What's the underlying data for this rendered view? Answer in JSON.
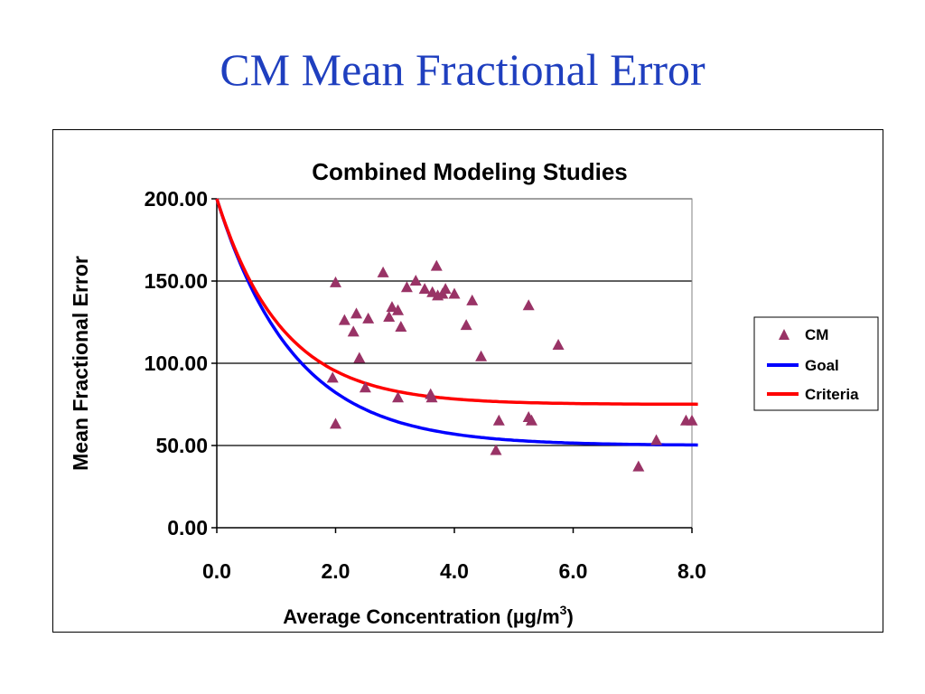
{
  "slide": {
    "title": "CM Mean Fractional Error"
  },
  "chart_data": {
    "type": "scatter",
    "title": "Combined Modeling Studies",
    "xlabel": "Average Concentration (µg/m",
    "xlabel_superscript": "3",
    "xlabel_close": ")",
    "ylabel": "Mean Fractional Error",
    "xlim": [
      0,
      8
    ],
    "ylim": [
      0,
      200
    ],
    "x_ticks": [
      {
        "value": 0,
        "label": "0.0"
      },
      {
        "value": 2,
        "label": "2.0"
      },
      {
        "value": 4,
        "label": "4.0"
      },
      {
        "value": 6,
        "label": "6.0"
      },
      {
        "value": 8,
        "label": "8.0"
      }
    ],
    "y_ticks": [
      {
        "value": 0,
        "label": "0.00"
      },
      {
        "value": 50,
        "label": "50.00"
      },
      {
        "value": 100,
        "label": "100.00"
      },
      {
        "value": 150,
        "label": "150.00"
      },
      {
        "value": 200,
        "label": "200.00"
      }
    ],
    "grid": "horizontal",
    "legend_position": "right",
    "colors": {
      "cm": "#993366",
      "goal": "#0000ff",
      "criteria": "#ff0000"
    },
    "series": [
      {
        "name": "CM",
        "kind": "scatter",
        "marker": "triangle",
        "points": [
          [
            1.95,
            91
          ],
          [
            2.0,
            149
          ],
          [
            2.0,
            63
          ],
          [
            2.15,
            126
          ],
          [
            2.3,
            119
          ],
          [
            2.35,
            130
          ],
          [
            2.4,
            103
          ],
          [
            2.5,
            85
          ],
          [
            2.55,
            127
          ],
          [
            2.8,
            155
          ],
          [
            2.9,
            128
          ],
          [
            2.95,
            134
          ],
          [
            3.05,
            132
          ],
          [
            3.05,
            79
          ],
          [
            3.1,
            122
          ],
          [
            3.2,
            146
          ],
          [
            3.35,
            150
          ],
          [
            3.5,
            145
          ],
          [
            3.6,
            81
          ],
          [
            3.62,
            79
          ],
          [
            3.63,
            143
          ],
          [
            3.7,
            159
          ],
          [
            3.72,
            141
          ],
          [
            3.8,
            142
          ],
          [
            3.85,
            145
          ],
          [
            4.0,
            142
          ],
          [
            4.2,
            123
          ],
          [
            4.3,
            138
          ],
          [
            4.45,
            104
          ],
          [
            4.7,
            47
          ],
          [
            4.75,
            65
          ],
          [
            5.25,
            67
          ],
          [
            5.25,
            135
          ],
          [
            5.3,
            65
          ],
          [
            5.75,
            111
          ],
          [
            7.1,
            37
          ],
          [
            7.4,
            53
          ],
          [
            7.9,
            65
          ],
          [
            8.0,
            65
          ]
        ]
      },
      {
        "name": "Goal",
        "kind": "line",
        "curve": {
          "base": 50,
          "amplitude": 150,
          "decay": 1.3,
          "x_end": 8.1
        }
      },
      {
        "name": "Criteria",
        "kind": "line",
        "curve": {
          "base": 75,
          "amplitude": 125,
          "decay": 1.1,
          "x_end": 8.1
        }
      }
    ]
  }
}
